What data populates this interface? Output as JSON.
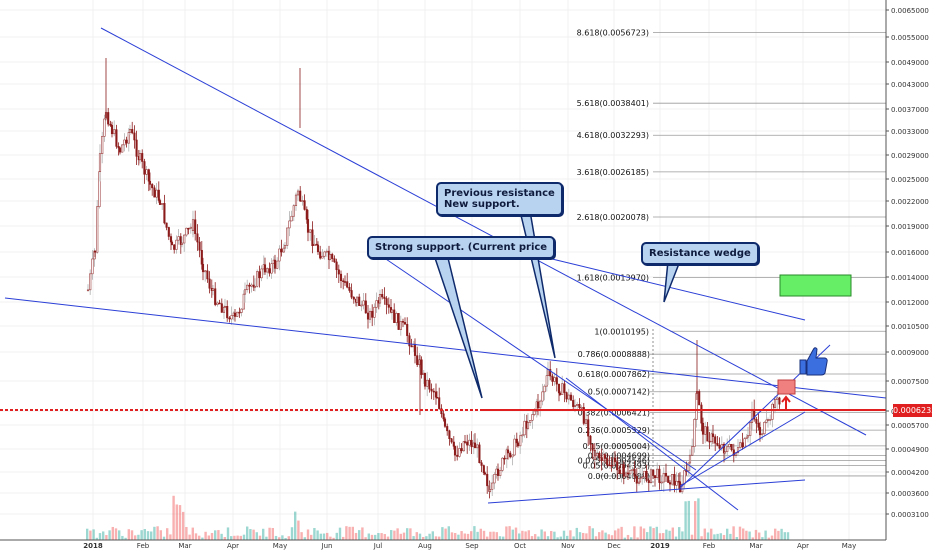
{
  "chart_data": {
    "type": "candlestick",
    "y_axis_ticks": [
      "0.0065000",
      "0.0055000",
      "0.0049000",
      "0.0043000",
      "0.0037000",
      "0.0033000",
      "0.0029000",
      "0.0025000",
      "0.0022000",
      "0.0019000",
      "0.0016000",
      "0.0014000",
      "0.0012000",
      "0.0010500",
      "0.0009000",
      "0.0007500",
      "0.0006500",
      "0.0005700",
      "0.0004900",
      "0.0004200",
      "0.0003600",
      "0.0003100"
    ],
    "x_axis_ticks": [
      "2018",
      "Feb",
      "Mar",
      "Apr",
      "May",
      "Jun",
      "Jul",
      "Aug",
      "Sep",
      "Oct",
      "Nov",
      "Dec",
      "2019",
      "Feb",
      "Mar",
      "Apr",
      "May"
    ],
    "current_price": "0.0006235",
    "fib_levels": [
      {
        "label": "8.618(0.0056723)",
        "value": 0.0056723
      },
      {
        "label": "5.618(0.0038401)",
        "value": 0.0038401
      },
      {
        "label": "4.618(0.0032293)",
        "value": 0.0032293
      },
      {
        "label": "3.618(0.0026185)",
        "value": 0.0026185
      },
      {
        "label": "2.618(0.0020078)",
        "value": 0.0020078
      },
      {
        "label": "1.618(0.0013970)",
        "value": 0.001397
      },
      {
        "label": "1(0.0010195)",
        "value": 0.0010195
      },
      {
        "label": "0.786(0.0008888)",
        "value": 0.0008888
      },
      {
        "label": "0.618(0.0007862)",
        "value": 0.0007862
      },
      {
        "label": "0.5(0.0007142)",
        "value": 0.0007142
      },
      {
        "label": "0.382(0.0006421)",
        "value": 0.0006421
      },
      {
        "label": "0.236(0.0005529)",
        "value": 0.0005529
      },
      {
        "label": "0.15(0.0005004)",
        "value": 0.0005004
      },
      {
        "label": "0.1(0.0004699)",
        "value": 0.0004699
      },
      {
        "label": "0.075(0.0004546)",
        "value": 0.0004546
      },
      {
        "label": "0.05(0.0004393)",
        "value": 0.0004393
      },
      {
        "label": "0.0(0.0004088)",
        "value": 0.0004088
      }
    ],
    "annotations": [
      "Previous resistance\nNew support.",
      "Strong support. (Current price",
      "Resistance wedge"
    ],
    "colors": {
      "up": "#26a69a",
      "down": "#ef5350",
      "candle": "#8b1a1a",
      "trendline": "#2b3fd6",
      "support": "#e02020",
      "target_box": "#66ee66",
      "sell_box": "#f08080"
    }
  }
}
